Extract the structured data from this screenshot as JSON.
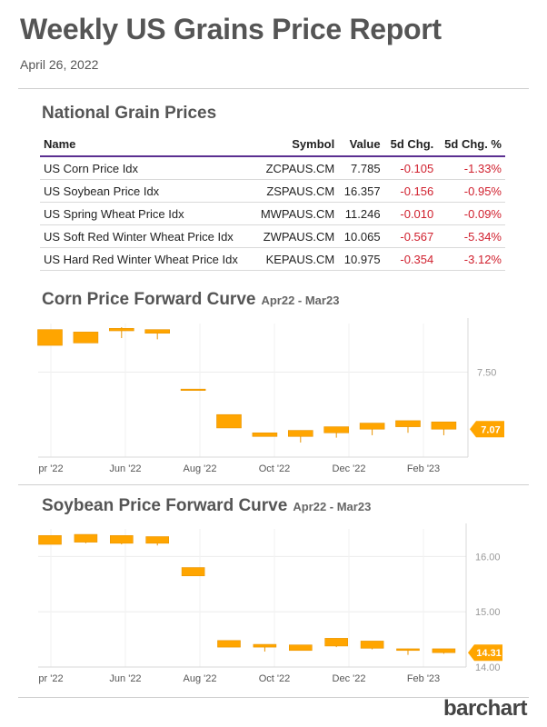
{
  "report": {
    "title": "Weekly US Grains Price Report",
    "date": "April 26, 2022",
    "brand": "barchart"
  },
  "table": {
    "title": "National Grain Prices",
    "headers": [
      "Name",
      "Symbol",
      "Value",
      "5d Chg.",
      "5d Chg. %"
    ],
    "rows": [
      [
        "US Corn Price Idx",
        "ZCPAUS.CM",
        "7.785",
        "-0.105",
        "-1.33%"
      ],
      [
        "US Soybean Price Idx",
        "ZSPAUS.CM",
        "16.357",
        "-0.156",
        "-0.95%"
      ],
      [
        "US Spring Wheat Price Idx",
        "MWPAUS.CM",
        "11.246",
        "-0.010",
        "-0.09%"
      ],
      [
        "US Soft Red Winter Wheat Price Idx",
        "ZWPAUS.CM",
        "10.065",
        "-0.567",
        "-5.34%"
      ],
      [
        "US Hard Red Winter Wheat Price Idx",
        "KEPAUS.CM",
        "10.975",
        "-0.354",
        "-3.12%"
      ]
    ]
  },
  "colors": {
    "candle": "#ffa500",
    "candle_stroke": "#e89400",
    "table_rule": "#5b2f91",
    "negative": "#d01f2d"
  },
  "chart_data": [
    {
      "type": "candlestick",
      "title": "Corn Price Forward Curve",
      "subtitle": "Apr22 - Mar23",
      "x_tick_labels": [
        "pr '22",
        "Jun '22",
        "Aug '22",
        "Oct '22",
        "Dec '22",
        "Feb '23"
      ],
      "y_tick_labels": [
        "7.50"
      ],
      "yrange": [
        6.8,
        7.9
      ],
      "last_value": "7.07",
      "candles": [
        {
          "o": 7.85,
          "c": 7.72,
          "h": 7.85,
          "l": 7.72
        },
        {
          "o": 7.83,
          "c": 7.74,
          "h": 7.83,
          "l": 7.74
        },
        {
          "o": 7.86,
          "c": 7.84,
          "h": 7.87,
          "l": 7.78
        },
        {
          "o": 7.85,
          "c": 7.82,
          "h": 7.85,
          "l": 7.77
        },
        {
          "o": 7.36,
          "c": 7.36,
          "h": 7.36,
          "l": 7.36
        },
        {
          "o": 7.15,
          "c": 7.04,
          "h": 7.15,
          "l": 7.04
        },
        {
          "o": 7.0,
          "c": 6.97,
          "h": 7.0,
          "l": 6.97
        },
        {
          "o": 7.02,
          "c": 6.97,
          "h": 7.02,
          "l": 6.92
        },
        {
          "o": 7.05,
          "c": 7.0,
          "h": 7.05,
          "l": 6.96
        },
        {
          "o": 7.08,
          "c": 7.03,
          "h": 7.08,
          "l": 6.98
        },
        {
          "o": 7.1,
          "c": 7.05,
          "h": 7.1,
          "l": 7.0
        },
        {
          "o": 7.09,
          "c": 7.03,
          "h": 7.09,
          "l": 6.98
        }
      ]
    },
    {
      "type": "candlestick",
      "title": "Soybean Price Forward Curve",
      "subtitle": "Apr22 - Mar23",
      "x_tick_labels": [
        "pr '22",
        "Jun '22",
        "Aug '22",
        "Oct '22",
        "Dec '22",
        "Feb '23"
      ],
      "y_tick_labels": [
        "16.00",
        "15.00",
        "14.00"
      ],
      "yrange": [
        14.0,
        16.5
      ],
      "last_value": "14.31",
      "candles": [
        {
          "o": 16.38,
          "c": 16.22,
          "h": 16.38,
          "l": 16.22
        },
        {
          "o": 16.4,
          "c": 16.26,
          "h": 16.4,
          "l": 16.24
        },
        {
          "o": 16.38,
          "c": 16.24,
          "h": 16.38,
          "l": 16.22
        },
        {
          "o": 16.36,
          "c": 16.24,
          "h": 16.36,
          "l": 16.2
        },
        {
          "o": 15.8,
          "c": 15.65,
          "h": 15.8,
          "l": 15.65
        },
        {
          "o": 14.48,
          "c": 14.36,
          "h": 14.48,
          "l": 14.36
        },
        {
          "o": 14.41,
          "c": 14.36,
          "h": 14.41,
          "l": 14.28
        },
        {
          "o": 14.4,
          "c": 14.3,
          "h": 14.4,
          "l": 14.3
        },
        {
          "o": 14.52,
          "c": 14.38,
          "h": 14.52,
          "l": 14.36
        },
        {
          "o": 14.47,
          "c": 14.34,
          "h": 14.47,
          "l": 14.32
        },
        {
          "o": 14.33,
          "c": 14.3,
          "h": 14.33,
          "l": 14.22
        },
        {
          "o": 14.33,
          "c": 14.26,
          "h": 14.33,
          "l": 14.24
        }
      ]
    }
  ]
}
